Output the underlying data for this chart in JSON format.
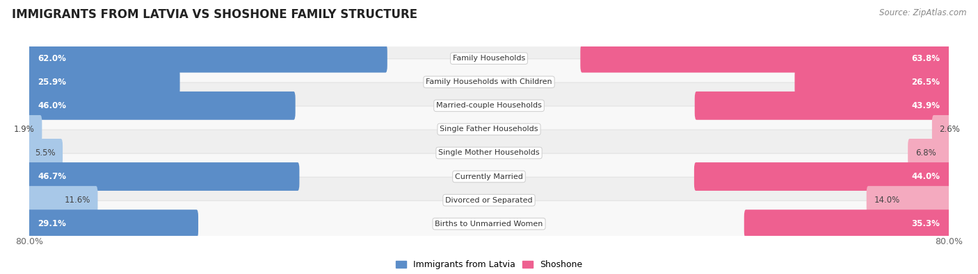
{
  "title": "IMMIGRANTS FROM LATVIA VS SHOSHONE FAMILY STRUCTURE",
  "source": "Source: ZipAtlas.com",
  "categories": [
    "Family Households",
    "Family Households with Children",
    "Married-couple Households",
    "Single Father Households",
    "Single Mother Households",
    "Currently Married",
    "Divorced or Separated",
    "Births to Unmarried Women"
  ],
  "latvia_values": [
    62.0,
    25.9,
    46.0,
    1.9,
    5.5,
    46.7,
    11.6,
    29.1
  ],
  "shoshone_values": [
    63.8,
    26.5,
    43.9,
    2.6,
    6.8,
    44.0,
    14.0,
    35.3
  ],
  "x_max": 80.0,
  "latvia_color_dark": "#5B8DC8",
  "latvia_color_light": "#A8C8E8",
  "shoshone_color_dark": "#EE6090",
  "shoshone_color_light": "#F4AABF",
  "row_bg_even": "#EFEFEF",
  "row_bg_odd": "#F8F8F8",
  "row_border_color": "#DDDDDD",
  "title_fontsize": 12,
  "source_fontsize": 8.5,
  "bar_label_fontsize": 8.5,
  "category_fontsize": 8,
  "legend_fontsize": 9,
  "axis_label_fontsize": 9
}
